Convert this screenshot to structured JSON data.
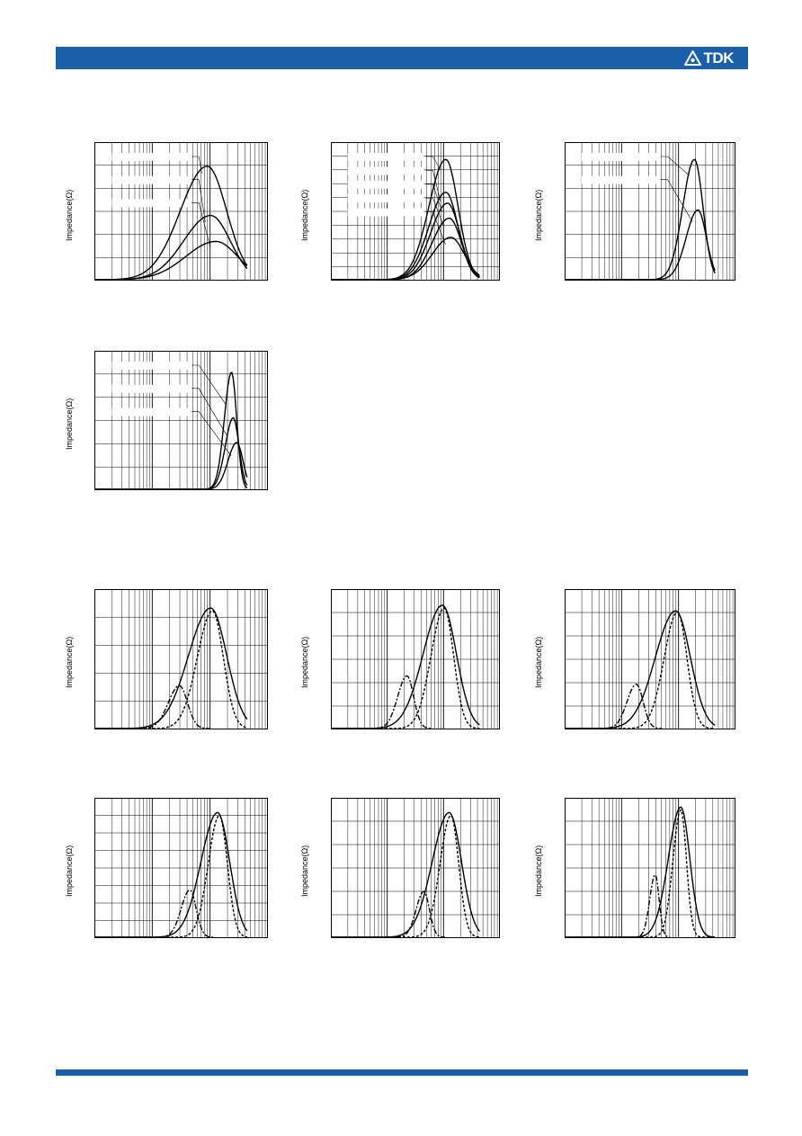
{
  "header": {
    "logo_text": "TDK",
    "logo_icon": "tdk-emblem-icon"
  },
  "colors": {
    "brand_blue": "#1a5fa8",
    "grid": "#000000",
    "curve": "#000000"
  },
  "charts": [
    {
      "ylabel": "Impedance(Ω)",
      "legend_lines": 3
    },
    {
      "ylabel": "Impedance(Ω)",
      "legend_lines": 5
    },
    {
      "ylabel": "Impedance(Ω)",
      "legend_lines": 2
    },
    {
      "ylabel": "Impedance(Ω)",
      "legend_lines": 3
    },
    {
      "ylabel": "Impedance(Ω)"
    },
    {
      "ylabel": "Impedance(Ω)"
    },
    {
      "ylabel": "Impedance(Ω)"
    },
    {
      "ylabel": "Impedance(Ω)"
    },
    {
      "ylabel": "Impedance(Ω)"
    },
    {
      "ylabel": "Impedance(Ω)"
    }
  ],
  "chart_data": [
    {
      "type": "line",
      "xscale": "log",
      "x_decades": 3,
      "y_divisions": 6,
      "series": [
        {
          "style": "solid",
          "peak_x": 0.65,
          "peak_y": 0.83,
          "width": 0.34
        },
        {
          "style": "solid",
          "peak_x": 0.67,
          "peak_y": 0.47,
          "width": 0.34
        },
        {
          "style": "solid",
          "peak_x": 0.7,
          "peak_y": 0.28,
          "width": 0.38
        }
      ]
    },
    {
      "type": "line",
      "xscale": "log",
      "x_decades": 3,
      "y_divisions": 10,
      "series": [
        {
          "style": "solid",
          "peak_x": 0.68,
          "peak_y": 0.88,
          "width": 0.22
        },
        {
          "style": "solid",
          "peak_x": 0.68,
          "peak_y": 0.64,
          "width": 0.22
        },
        {
          "style": "solid",
          "peak_x": 0.69,
          "peak_y": 0.56,
          "width": 0.22
        },
        {
          "style": "solid",
          "peak_x": 0.7,
          "peak_y": 0.45,
          "width": 0.22
        },
        {
          "style": "solid",
          "peak_x": 0.71,
          "peak_y": 0.31,
          "width": 0.24
        }
      ]
    },
    {
      "type": "line",
      "xscale": "log",
      "x_decades": 3,
      "y_divisions": 6,
      "series": [
        {
          "style": "solid",
          "peak_x": 0.76,
          "peak_y": 0.88,
          "width": 0.15
        },
        {
          "style": "solid",
          "peak_x": 0.78,
          "peak_y": 0.51,
          "width": 0.15
        }
      ]
    },
    {
      "type": "line",
      "xscale": "log",
      "x_decades": 3,
      "y_divisions": 6,
      "series": [
        {
          "style": "solid",
          "peak_x": 0.79,
          "peak_y": 0.85,
          "width": 0.09
        },
        {
          "style": "solid",
          "peak_x": 0.8,
          "peak_y": 0.52,
          "width": 0.1
        },
        {
          "style": "solid",
          "peak_x": 0.82,
          "peak_y": 0.34,
          "width": 0.11
        }
      ]
    },
    {
      "type": "line",
      "xscale": "log",
      "x_decades": 3,
      "y_divisions": 5,
      "series": [
        {
          "style": "solid",
          "role": "Z",
          "peak_x": 0.67,
          "peak_y": 0.87,
          "width": 0.28
        },
        {
          "style": "dashed",
          "role": "R",
          "peak_x": 0.68,
          "peak_y": 0.85,
          "width": 0.19
        },
        {
          "style": "dashdot",
          "role": "X",
          "peak_x": 0.49,
          "peak_y": 0.31,
          "width": 0.14
        }
      ]
    },
    {
      "type": "line",
      "xscale": "log",
      "x_decades": 3,
      "y_divisions": 6,
      "series": [
        {
          "style": "solid",
          "role": "Z",
          "peak_x": 0.66,
          "peak_y": 0.89,
          "width": 0.25
        },
        {
          "style": "dashed",
          "role": "R",
          "peak_x": 0.67,
          "peak_y": 0.87,
          "width": 0.17
        },
        {
          "style": "dashdot",
          "role": "X",
          "peak_x": 0.45,
          "peak_y": 0.38,
          "width": 0.12
        }
      ]
    },
    {
      "type": "line",
      "xscale": "log",
      "x_decades": 3,
      "y_divisions": 6,
      "series": [
        {
          "style": "solid",
          "role": "Z",
          "peak_x": 0.65,
          "peak_y": 0.85,
          "width": 0.26
        },
        {
          "style": "dashed",
          "role": "R",
          "peak_x": 0.66,
          "peak_y": 0.84,
          "width": 0.17
        },
        {
          "style": "dashdot",
          "role": "X",
          "peak_x": 0.42,
          "peak_y": 0.32,
          "width": 0.12
        }
      ]
    },
    {
      "type": "line",
      "xscale": "log",
      "x_decades": 3,
      "y_divisions": 8,
      "series": [
        {
          "style": "solid",
          "role": "Z",
          "peak_x": 0.71,
          "peak_y": 0.9,
          "width": 0.21
        },
        {
          "style": "dashed",
          "role": "R",
          "peak_x": 0.72,
          "peak_y": 0.88,
          "width": 0.14
        },
        {
          "style": "dashdot",
          "role": "X",
          "peak_x": 0.55,
          "peak_y": 0.34,
          "width": 0.11
        }
      ]
    },
    {
      "type": "line",
      "xscale": "log",
      "x_decades": 3,
      "y_divisions": 6,
      "series": [
        {
          "style": "solid",
          "role": "Z",
          "peak_x": 0.7,
          "peak_y": 0.9,
          "width": 0.22
        },
        {
          "style": "dashed",
          "role": "R",
          "peak_x": 0.71,
          "peak_y": 0.88,
          "width": 0.14
        },
        {
          "style": "dashdot",
          "role": "X",
          "peak_x": 0.55,
          "peak_y": 0.33,
          "width": 0.1
        }
      ]
    },
    {
      "type": "line",
      "xscale": "log",
      "x_decades": 3,
      "y_divisions": 6,
      "series": [
        {
          "style": "solid",
          "role": "Z",
          "peak_x": 0.68,
          "peak_y": 0.94,
          "width": 0.16
        },
        {
          "style": "dashed",
          "role": "R",
          "peak_x": 0.68,
          "peak_y": 0.92,
          "width": 0.1
        },
        {
          "style": "dashdot",
          "role": "X",
          "peak_x": 0.53,
          "peak_y": 0.45,
          "width": 0.07
        }
      ]
    }
  ]
}
